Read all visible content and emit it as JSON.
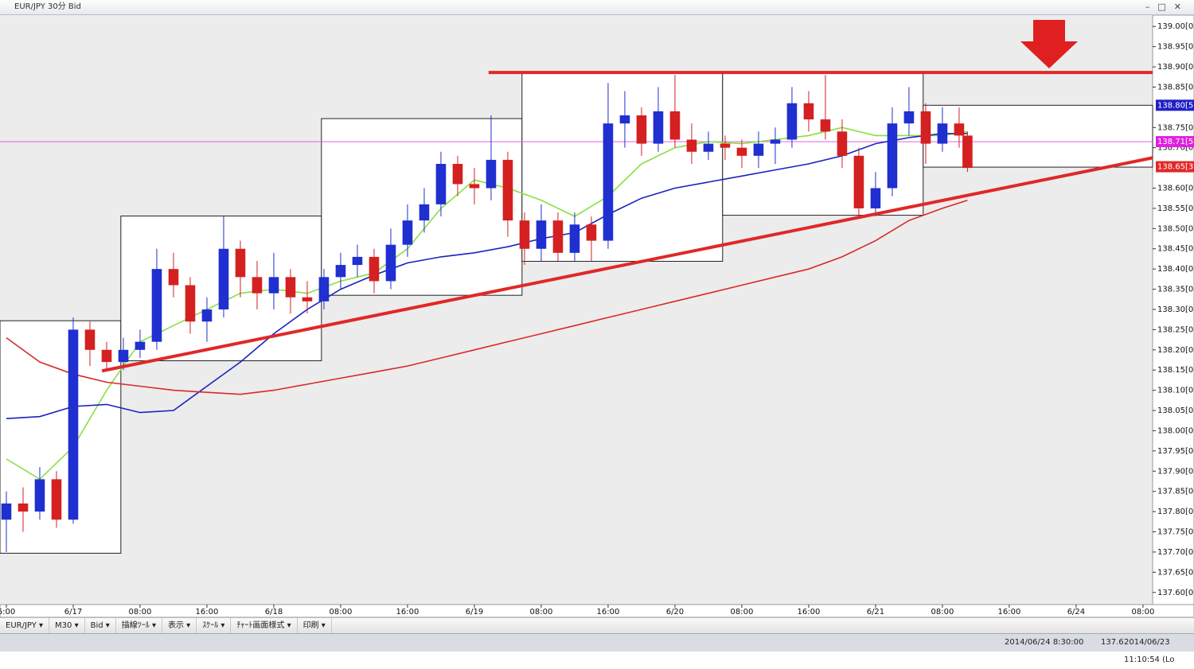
{
  "window_title": "EUR/JPY 30分 Bid",
  "toolbar": [
    "EUR/JPY ▾",
    "M30 ▾",
    "Bid ▾",
    "描線ﾂｰﾙ ▾",
    "表示 ▾",
    "ｽｹｰﾙ ▾",
    "ﾁｬｰﾄ画面様式 ▾",
    "印刷 ▾"
  ],
  "status": [
    "2014/06/24 8:30:00",
    "137.6",
    "2014/06/23 11:10:54 (Lo"
  ],
  "chart_data": {
    "type": "candlestick",
    "up_color": "#1f2fd0",
    "down_color": "#d42020",
    "xlim": [
      -1.52,
      274.3
    ],
    "ylim": [
      137.57,
      139.026
    ],
    "xticks": [
      {
        "value": 0,
        "label": "6:00"
      },
      {
        "value": 16,
        "label": "6/17"
      },
      {
        "value": 32,
        "label": "08:00"
      },
      {
        "value": 48,
        "label": "16:00"
      },
      {
        "value": 64,
        "label": "6/18"
      },
      {
        "value": 80,
        "label": "08:00"
      },
      {
        "value": 96,
        "label": "16:00"
      },
      {
        "value": 112,
        "label": "6/19"
      },
      {
        "value": 128,
        "label": "08:00"
      },
      {
        "value": 144,
        "label": "16:00"
      },
      {
        "value": 160,
        "label": "6/20"
      },
      {
        "value": 176,
        "label": "08:00"
      },
      {
        "value": 192,
        "label": "16:00"
      },
      {
        "value": 208,
        "label": "6/21"
      },
      {
        "value": 224,
        "label": "08:00"
      },
      {
        "value": 240,
        "label": "16:00"
      },
      {
        "value": 256,
        "label": "6/24"
      },
      {
        "value": 272,
        "label": "08:00"
      }
    ],
    "yticks": [
      {
        "value": 139.0,
        "label": "139.00[0]"
      },
      {
        "value": 138.95,
        "label": "138.95[0]"
      },
      {
        "value": 138.9,
        "label": "138.90[0]"
      },
      {
        "value": 138.85,
        "label": "138.85[0]"
      },
      {
        "value": 138.75,
        "label": "138.75[0]"
      },
      {
        "value": 138.7,
        "label": "138.70[0]"
      },
      {
        "value": 138.6,
        "label": "138.60[0]"
      },
      {
        "value": 138.55,
        "label": "138.55[0]"
      },
      {
        "value": 138.5,
        "label": "138.50[0]"
      },
      {
        "value": 138.45,
        "label": "138.45[0]"
      },
      {
        "value": 138.4,
        "label": "138.40[0]"
      },
      {
        "value": 138.35,
        "label": "138.35[0]"
      },
      {
        "value": 138.3,
        "label": "138.30[0]"
      },
      {
        "value": 138.25,
        "label": "138.25[0]"
      },
      {
        "value": 138.2,
        "label": "138.20[0]"
      },
      {
        "value": 138.15,
        "label": "138.15[0]"
      },
      {
        "value": 138.1,
        "label": "138.10[0]"
      },
      {
        "value": 138.05,
        "label": "138.05[0]"
      },
      {
        "value": 138.0,
        "label": "138.00[0]"
      },
      {
        "value": 137.95,
        "label": "137.95[0]"
      },
      {
        "value": 137.9,
        "label": "137.90[0]"
      },
      {
        "value": 137.85,
        "label": "137.85[0]"
      },
      {
        "value": 137.8,
        "label": "137.80[0]"
      },
      {
        "value": 137.75,
        "label": "137.75[0]"
      },
      {
        "value": 137.7,
        "label": "137.70[0]"
      },
      {
        "value": 137.65,
        "label": "137.65[0]"
      },
      {
        "value": 137.6,
        "label": "137.60[0]"
      }
    ],
    "price_labels": [
      {
        "value": 138.805,
        "label": "138.80[5",
        "color": "#2020c8"
      },
      {
        "value": 138.715,
        "label": "138.71[5",
        "color": "#e020e0"
      },
      {
        "value": 138.653,
        "label": "138.65[3",
        "color": "#e02828"
      }
    ],
    "current_line": {
      "value": 138.715,
      "color": "#e060e0"
    },
    "boxes": [
      {
        "x": [
          -1.52,
          27.4
        ],
        "values": [
          138.272,
          137.697
        ]
      },
      {
        "x": [
          27.4,
          75.4
        ],
        "values": [
          138.531,
          138.173
        ]
      },
      {
        "x": [
          75.4,
          123.4
        ],
        "values": [
          138.772,
          138.335
        ]
      },
      {
        "x": [
          123.4,
          171.4
        ],
        "values": [
          138.886,
          138.419
        ]
      },
      {
        "x": [
          171.4,
          219.4
        ],
        "values": [
          138.886,
          138.533
        ]
      },
      {
        "x": [
          219.4,
          274.3
        ],
        "values": [
          138.805,
          138.652
        ]
      }
    ],
    "trend_lines": [
      {
        "x": [
          22.9,
          274.3
        ],
        "values": [
          138.148,
          138.675
        ],
        "color": "#e02828"
      },
      {
        "x": [
          115.4,
          274.3
        ],
        "values": [
          138.886,
          138.886
        ],
        "color": "#e02828"
      }
    ],
    "ma_x": [
      0,
      8,
      16,
      24,
      32,
      40,
      48,
      56,
      64,
      72,
      80,
      88,
      96,
      104,
      112,
      120,
      128,
      136,
      144,
      152,
      160,
      168,
      176,
      184,
      192,
      200,
      208,
      216,
      224,
      230
    ],
    "moving_averages": [
      {
        "color": "#88e040",
        "values": [
          137.93,
          137.88,
          137.96,
          138.1,
          138.22,
          138.26,
          138.3,
          138.34,
          138.35,
          138.34,
          138.37,
          138.39,
          138.45,
          138.55,
          138.62,
          138.6,
          138.57,
          138.53,
          138.58,
          138.66,
          138.7,
          138.715,
          138.71,
          138.72,
          138.73,
          138.75,
          138.73,
          138.73,
          138.73,
          138.74
        ]
      },
      {
        "color": "#1a22c0",
        "values": [
          138.03,
          138.035,
          138.06,
          138.065,
          138.045,
          138.05,
          138.11,
          138.17,
          138.24,
          138.3,
          138.35,
          138.385,
          138.415,
          138.43,
          138.44,
          138.455,
          138.475,
          138.49,
          138.535,
          138.575,
          138.6,
          138.615,
          138.63,
          138.645,
          138.66,
          138.68,
          138.71,
          138.725,
          138.735,
          138.735
        ]
      },
      {
        "color": "#d82a2a",
        "values": [
          138.23,
          138.17,
          138.14,
          138.12,
          138.11,
          138.1,
          138.095,
          138.09,
          138.1,
          138.115,
          138.13,
          138.145,
          138.16,
          138.18,
          138.2,
          138.22,
          138.24,
          138.26,
          138.28,
          138.3,
          138.32,
          138.34,
          138.36,
          138.38,
          138.4,
          138.43,
          138.47,
          138.52,
          138.55,
          138.57
        ]
      }
    ],
    "candles": [
      [
        0,
        137.78,
        137.85,
        137.7,
        137.82
      ],
      [
        4,
        137.82,
        137.86,
        137.75,
        137.8
      ],
      [
        8,
        137.8,
        137.91,
        137.78,
        137.88
      ],
      [
        12,
        137.88,
        137.9,
        137.76,
        137.78
      ],
      [
        16,
        137.78,
        138.28,
        137.77,
        138.25
      ],
      [
        20,
        138.25,
        138.27,
        138.16,
        138.2
      ],
      [
        24,
        138.2,
        138.22,
        138.15,
        138.17
      ],
      [
        28,
        138.17,
        138.23,
        138.15,
        138.2
      ],
      [
        32,
        138.2,
        138.25,
        138.18,
        138.22
      ],
      [
        36,
        138.22,
        138.45,
        138.2,
        138.4
      ],
      [
        40,
        138.4,
        138.44,
        138.33,
        138.36
      ],
      [
        44,
        138.36,
        138.38,
        138.24,
        138.27
      ],
      [
        48,
        138.27,
        138.33,
        138.22,
        138.3
      ],
      [
        52,
        138.3,
        138.53,
        138.28,
        138.45
      ],
      [
        56,
        138.45,
        138.47,
        138.33,
        138.38
      ],
      [
        60,
        138.38,
        138.42,
        138.3,
        138.34
      ],
      [
        64,
        138.34,
        138.44,
        138.3,
        138.38
      ],
      [
        68,
        138.38,
        138.4,
        138.29,
        138.33
      ],
      [
        72,
        138.33,
        138.37,
        138.29,
        138.32
      ],
      [
        76,
        138.32,
        138.4,
        138.3,
        138.38
      ],
      [
        80,
        138.38,
        138.44,
        138.35,
        138.41
      ],
      [
        84,
        138.41,
        138.46,
        138.38,
        138.43
      ],
      [
        88,
        138.43,
        138.45,
        138.34,
        138.37
      ],
      [
        92,
        138.37,
        138.5,
        138.35,
        138.46
      ],
      [
        96,
        138.46,
        138.56,
        138.43,
        138.52
      ],
      [
        100,
        138.52,
        138.6,
        138.49,
        138.56
      ],
      [
        104,
        138.56,
        138.69,
        138.53,
        138.66
      ],
      [
        108,
        138.66,
        138.68,
        138.58,
        138.61
      ],
      [
        112,
        138.61,
        138.65,
        138.56,
        138.6
      ],
      [
        116,
        138.6,
        138.78,
        138.57,
        138.67
      ],
      [
        120,
        138.67,
        138.69,
        138.48,
        138.52
      ],
      [
        124,
        138.52,
        138.54,
        138.41,
        138.45
      ],
      [
        128,
        138.45,
        138.56,
        138.42,
        138.52
      ],
      [
        132,
        138.52,
        138.54,
        138.42,
        138.44
      ],
      [
        136,
        138.44,
        138.54,
        138.42,
        138.51
      ],
      [
        140,
        138.51,
        138.53,
        138.42,
        138.47
      ],
      [
        144,
        138.47,
        138.86,
        138.45,
        138.76
      ],
      [
        148,
        138.76,
        138.84,
        138.7,
        138.78
      ],
      [
        152,
        138.78,
        138.8,
        138.68,
        138.71
      ],
      [
        156,
        138.71,
        138.85,
        138.69,
        138.79
      ],
      [
        160,
        138.79,
        138.88,
        138.7,
        138.72
      ],
      [
        164,
        138.72,
        138.76,
        138.66,
        138.69
      ],
      [
        168,
        138.69,
        138.74,
        138.67,
        138.71
      ],
      [
        172,
        138.71,
        138.73,
        138.67,
        138.7
      ],
      [
        176,
        138.7,
        138.72,
        138.65,
        138.68
      ],
      [
        180,
        138.68,
        138.74,
        138.65,
        138.71
      ],
      [
        184,
        138.71,
        138.75,
        138.66,
        138.72
      ],
      [
        188,
        138.72,
        138.85,
        138.7,
        138.81
      ],
      [
        192,
        138.81,
        138.84,
        138.74,
        138.77
      ],
      [
        196,
        138.77,
        138.88,
        138.72,
        138.74
      ],
      [
        200,
        138.74,
        138.77,
        138.65,
        138.68
      ],
      [
        204,
        138.68,
        138.7,
        138.53,
        138.55
      ],
      [
        208,
        138.55,
        138.64,
        138.53,
        138.6
      ],
      [
        212,
        138.6,
        138.8,
        138.58,
        138.76
      ],
      [
        216,
        138.76,
        138.85,
        138.73,
        138.79
      ],
      [
        220,
        138.79,
        138.81,
        138.66,
        138.71
      ],
      [
        224,
        138.71,
        138.8,
        138.69,
        138.76
      ],
      [
        228,
        138.76,
        138.8,
        138.7,
        138.73
      ],
      [
        230,
        138.73,
        138.74,
        138.64,
        138.65
      ]
    ]
  }
}
